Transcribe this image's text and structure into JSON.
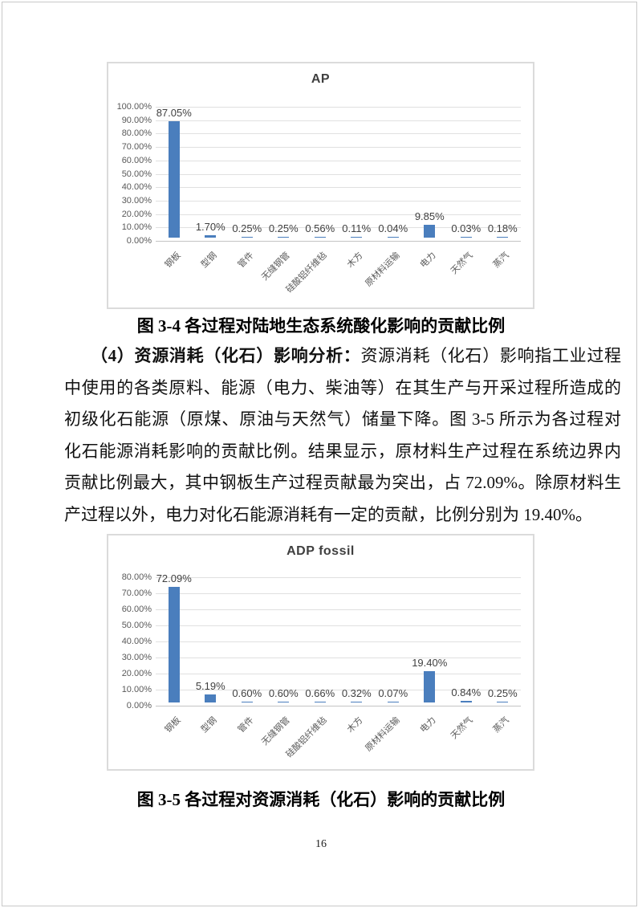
{
  "page": {
    "number": "16"
  },
  "captions": {
    "figure_3_4": "图 3-4 各过程对陆地生态系统酸化影响的贡献比例",
    "figure_3_5": "图 3-5 各过程对资源消耗（化石）影响的贡献比例"
  },
  "paragraph": {
    "lead_bold": "（4）资源消耗（化石）影响分析：",
    "line1_rest": "资源消耗（化石）影响指工业过程",
    "lines": [
      "中使用的各类原料、能源（电力、柴油等）在其生产与开采过程所造成的",
      "初级化石能源（原煤、原油与天然气）储量下降。图 3-5 所示为各过程对",
      "化石能源消耗影响的贡献比例。结果显示，原材料生产过程在系统边界内",
      "贡献比例最大，其中钢板生产过程贡献最为突出，占 72.09%。除原材料生",
      "产过程以外，电力对化石能源消耗有一定的贡献，比例分别为 19.40%。"
    ]
  },
  "chart_data": [
    {
      "type": "bar",
      "title": "AP",
      "categories": [
        "钢板",
        "型钢",
        "管件",
        "无缝钢管",
        "硅酸铝纤维毡",
        "木方",
        "原材料运输",
        "电力",
        "天然气",
        "蒸汽"
      ],
      "values": [
        87.05,
        1.7,
        0.25,
        0.25,
        0.56,
        0.11,
        0.04,
        9.85,
        0.03,
        0.18
      ],
      "data_labels": [
        "87.05%",
        "1.70%",
        "0.25%",
        "0.25%",
        "0.56%",
        "0.11%",
        "0.04%",
        "9.85%",
        "0.03%",
        "0.18%"
      ],
      "xlabel": "",
      "ylabel": "",
      "ylim": [
        0,
        100
      ],
      "ytick_step": 10,
      "ytick_labels": [
        "100.00%",
        "90.00%",
        "80.00%",
        "70.00%",
        "60.00%",
        "50.00%",
        "40.00%",
        "30.00%",
        "20.00%",
        "10.00%",
        "0.00%"
      ],
      "grid": true,
      "legend_position": "none",
      "bar_color": "#4a7ebd"
    },
    {
      "type": "bar",
      "title": "ADP fossil",
      "categories": [
        "钢板",
        "型钢",
        "管件",
        "无缝钢管",
        "硅酸铝纤维毡",
        "木方",
        "原材料运输",
        "电力",
        "天然气",
        "蒸汽"
      ],
      "values": [
        72.09,
        5.19,
        0.6,
        0.6,
        0.66,
        0.32,
        0.07,
        19.4,
        0.84,
        0.25
      ],
      "data_labels": [
        "72.09%",
        "5.19%",
        "0.60%",
        "0.60%",
        "0.66%",
        "0.32%",
        "0.07%",
        "19.40%",
        "0.84%",
        "0.25%"
      ],
      "xlabel": "",
      "ylabel": "",
      "ylim": [
        0,
        80
      ],
      "ytick_step": 10,
      "ytick_labels": [
        "80.00%",
        "70.00%",
        "60.00%",
        "50.00%",
        "40.00%",
        "30.00%",
        "20.00%",
        "10.00%",
        "0.00%"
      ],
      "grid": true,
      "legend_position": "none",
      "bar_color": "#4a7ebd"
    }
  ]
}
